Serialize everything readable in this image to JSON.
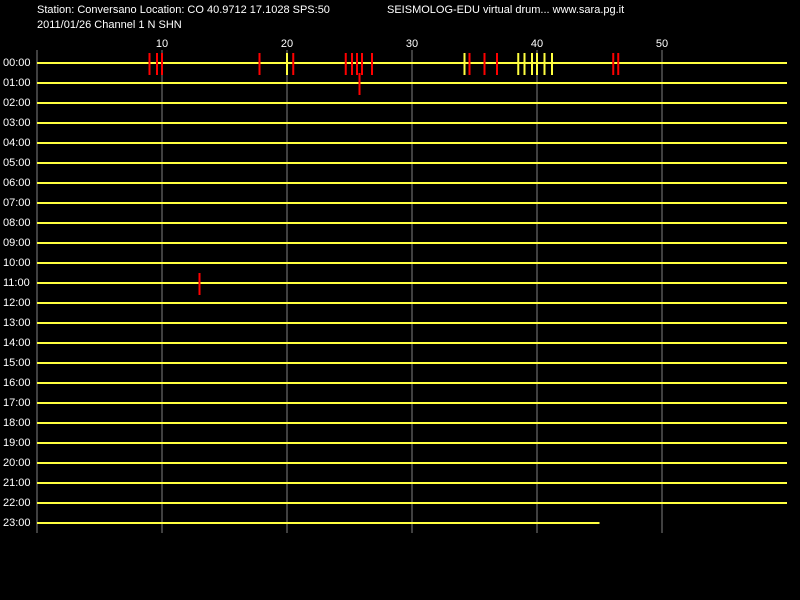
{
  "chart_data": {
    "type": "helicorder",
    "title": "Station: Conversano Location: CO 40.9712 17.1028 SPS:50",
    "subtitle": "SEISMOLOG-EDU virtual drum... www.sara.pg.it",
    "date_line": "2011/01/26  Channel 1 N SHN",
    "categories": [
      "00:00",
      "01:00",
      "02:00",
      "03:00",
      "04:00",
      "05:00",
      "06:00",
      "07:00",
      "08:00",
      "09:00",
      "10:00",
      "11:00",
      "12:00",
      "13:00",
      "14:00",
      "15:00",
      "16:00",
      "17:00",
      "18:00",
      "19:00",
      "20:00",
      "21:00",
      "22:00",
      "23:00"
    ],
    "xlim": [
      0,
      60
    ],
    "xticks": [
      10,
      20,
      30,
      40,
      50
    ],
    "trace_color": "#ffff40",
    "grid": true,
    "grid_color": "#808080",
    "last_row_end": 45,
    "events": [
      {
        "row": 0,
        "minute": 9.0,
        "color": "#ff0000"
      },
      {
        "row": 0,
        "minute": 9.6,
        "color": "#ff0000"
      },
      {
        "row": 0,
        "minute": 10.0,
        "color": "#ff0000"
      },
      {
        "row": 0,
        "minute": 17.8,
        "color": "#ff0000"
      },
      {
        "row": 0,
        "minute": 20.0,
        "color": "#ffff40"
      },
      {
        "row": 0,
        "minute": 20.5,
        "color": "#ff0000"
      },
      {
        "row": 0,
        "minute": 24.7,
        "color": "#ff0000"
      },
      {
        "row": 0,
        "minute": 25.2,
        "color": "#ff0000"
      },
      {
        "row": 0,
        "minute": 25.6,
        "color": "#ff0000"
      },
      {
        "row": 0,
        "minute": 26.0,
        "color": "#ff0000"
      },
      {
        "row": 0,
        "minute": 26.8,
        "color": "#ff0000"
      },
      {
        "row": 0,
        "minute": 34.2,
        "color": "#ffff40"
      },
      {
        "row": 0,
        "minute": 34.6,
        "color": "#ff0000"
      },
      {
        "row": 0,
        "minute": 35.8,
        "color": "#ff0000"
      },
      {
        "row": 0,
        "minute": 36.8,
        "color": "#ff0000"
      },
      {
        "row": 0,
        "minute": 38.5,
        "color": "#ffff40"
      },
      {
        "row": 0,
        "minute": 39.0,
        "color": "#ffff40"
      },
      {
        "row": 0,
        "minute": 39.6,
        "color": "#ffff40"
      },
      {
        "row": 0,
        "minute": 40.0,
        "color": "#ffff40"
      },
      {
        "row": 0,
        "minute": 40.6,
        "color": "#ffff40"
      },
      {
        "row": 0,
        "minute": 41.2,
        "color": "#ffff40"
      },
      {
        "row": 0,
        "minute": 46.1,
        "color": "#ff0000"
      },
      {
        "row": 0,
        "minute": 46.5,
        "color": "#ff0000"
      },
      {
        "row": 1,
        "minute": 25.8,
        "color": "#ff0000"
      },
      {
        "row": 11,
        "minute": 13.0,
        "color": "#ff0000"
      }
    ]
  }
}
